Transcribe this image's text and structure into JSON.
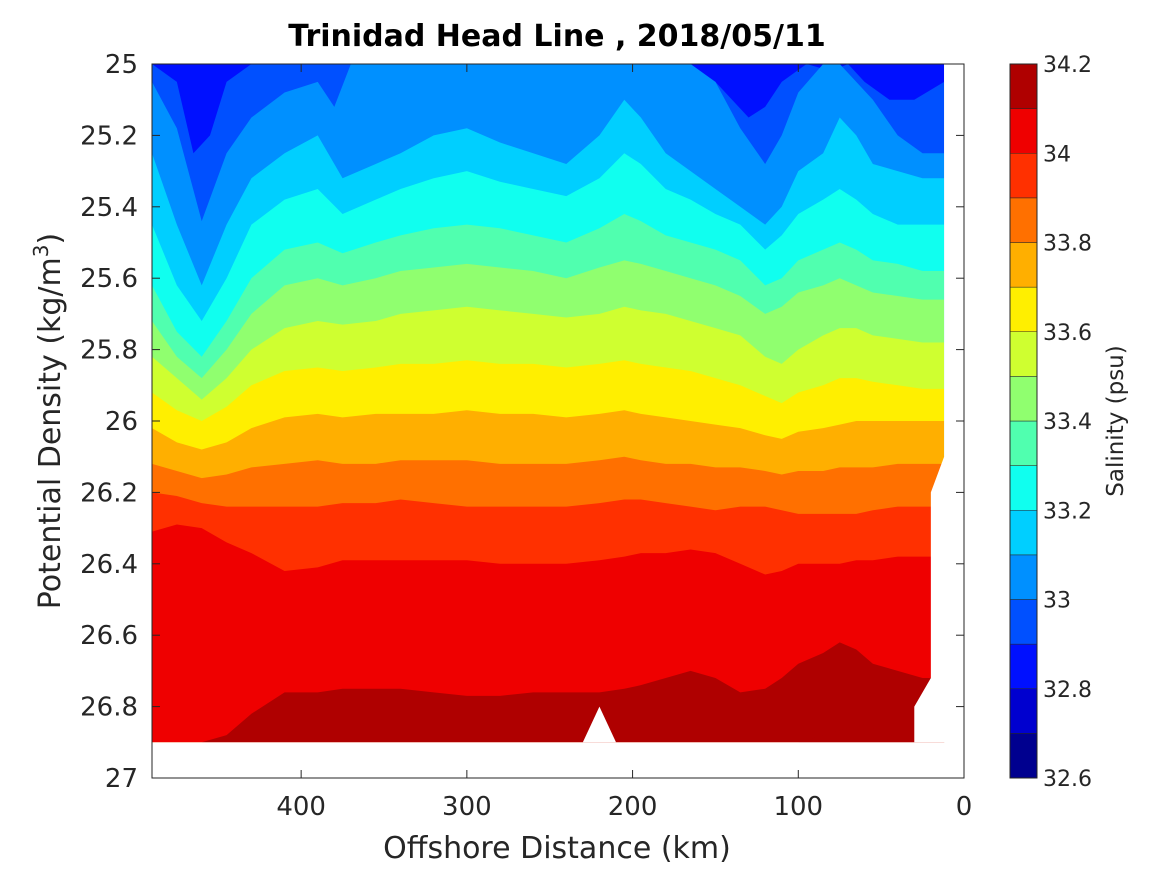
{
  "chart_data": {
    "type": "heatmap",
    "title": "Trinidad Head Line , 2018/05/11",
    "xlabel": "Offshore Distance (km)",
    "ylabel_main": "Potential Density (kg/m",
    "ylabel_sup": "3",
    "ylabel_close": ")",
    "colorbar_label": "Salinity (psu)",
    "x_reversed": true,
    "xlim": [
      490,
      0
    ],
    "ylim": [
      25,
      27
    ],
    "y_reversed": true,
    "x_ticks": [
      "400",
      "300",
      "200",
      "100",
      "0"
    ],
    "x_tick_values": [
      400,
      300,
      200,
      100,
      0
    ],
    "y_ticks": [
      "25",
      "25.2",
      "25.4",
      "25.6",
      "25.8",
      "26",
      "26.2",
      "26.4",
      "26.6",
      "26.8",
      "27"
    ],
    "y_tick_values": [
      25,
      25.2,
      25.4,
      25.6,
      25.8,
      26,
      26.2,
      26.4,
      26.6,
      26.8,
      27
    ],
    "colorbar_ticks": [
      "34.2",
      "34",
      "33.8",
      "33.6",
      "33.4",
      "33.2",
      "33",
      "32.8",
      "32.6"
    ],
    "colorbar_tick_values": [
      34.2,
      34.0,
      33.8,
      33.6,
      33.4,
      33.2,
      33.0,
      32.8,
      32.6
    ],
    "salinity_levels": [
      32.6,
      32.7,
      32.8,
      32.9,
      33.0,
      33.1,
      33.2,
      33.3,
      33.4,
      33.5,
      33.6,
      33.7,
      33.8,
      33.9,
      34.0,
      34.1,
      34.2
    ],
    "level_colors": [
      "#00008f",
      "#0000cf",
      "#0010ff",
      "#0050ff",
      "#0090ff",
      "#00cfff",
      "#10ffef",
      "#50ffaf",
      "#90ff6f",
      "#cfff30",
      "#ffef00",
      "#ffaf00",
      "#ff7000",
      "#ff3000",
      "#ef0000",
      "#af0000"
    ],
    "grid": false,
    "contour_boundaries_density": [
      {
        "above_level": 32.8,
        "x_km": [
          490,
          470,
          455,
          440,
          420,
          400,
          380,
          370,
          350,
          320,
          300,
          280,
          250,
          220,
          205,
          190,
          170,
          150,
          130,
          115,
          100,
          85,
          70,
          60,
          45,
          30,
          12
        ],
        "density": [
          25.0,
          25.0,
          25.0,
          25.0,
          25.0,
          25.0,
          25.0,
          25.0,
          25.0,
          25.0,
          25.0,
          25.0,
          25.0,
          25.0,
          25.0,
          25.0,
          25.0,
          25.0,
          25.0,
          25.0,
          25.0,
          25.0,
          25.0,
          25.0,
          25.0,
          25.0,
          25.0
        ]
      },
      {
        "above_level": 32.9,
        "x_km": [
          490,
          475,
          465,
          455,
          445,
          430,
          410,
          390,
          375,
          360,
          340,
          320,
          300,
          280,
          260,
          240,
          220,
          205,
          190,
          170,
          150,
          130,
          120,
          110,
          95,
          80,
          70,
          60,
          45,
          30,
          12
        ],
        "density": [
          25.0,
          25.05,
          25.25,
          25.2,
          25.05,
          25.0,
          25.0,
          25.0,
          25.0,
          25.0,
          25.0,
          25.0,
          25.0,
          25.0,
          25.0,
          25.0,
          25.0,
          25.0,
          25.0,
          25.0,
          25.05,
          25.15,
          25.12,
          25.05,
          25.0,
          25.02,
          25.0,
          25.05,
          25.1,
          25.1,
          25.05
        ]
      },
      {
        "above_level": 33.0,
        "x_km": [
          490,
          475,
          460,
          445,
          430,
          410,
          390,
          380,
          370,
          355,
          340,
          320,
          300,
          280,
          260,
          240,
          220,
          205,
          195,
          180,
          165,
          150,
          135,
          120,
          110,
          100,
          85,
          75,
          65,
          55,
          40,
          25,
          12
        ],
        "density": [
          25.05,
          25.18,
          25.44,
          25.25,
          25.15,
          25.08,
          25.05,
          25.12,
          25.0,
          25.0,
          25.0,
          25.0,
          25.0,
          25.0,
          25.0,
          25.0,
          25.0,
          25.0,
          25.0,
          25.0,
          25.0,
          25.05,
          25.18,
          25.28,
          25.2,
          25.08,
          25.0,
          25.0,
          25.05,
          25.1,
          25.2,
          25.25,
          25.25
        ]
      },
      {
        "above_level": 33.1,
        "x_km": [
          490,
          475,
          460,
          445,
          430,
          410,
          390,
          375,
          355,
          340,
          320,
          300,
          280,
          260,
          240,
          220,
          205,
          195,
          180,
          165,
          150,
          135,
          120,
          110,
          100,
          85,
          75,
          65,
          55,
          40,
          25,
          12
        ],
        "density": [
          25.25,
          25.45,
          25.62,
          25.45,
          25.32,
          25.25,
          25.2,
          25.32,
          25.28,
          25.25,
          25.2,
          25.18,
          25.22,
          25.25,
          25.28,
          25.2,
          25.1,
          25.15,
          25.25,
          25.3,
          25.35,
          25.4,
          25.45,
          25.4,
          25.3,
          25.25,
          25.15,
          25.2,
          25.28,
          25.3,
          25.32,
          25.32
        ]
      },
      {
        "above_level": 33.2,
        "x_km": [
          490,
          475,
          460,
          445,
          430,
          410,
          390,
          375,
          355,
          340,
          320,
          300,
          280,
          260,
          240,
          220,
          205,
          195,
          180,
          165,
          150,
          135,
          120,
          110,
          100,
          85,
          75,
          65,
          55,
          40,
          25,
          12
        ],
        "density": [
          25.45,
          25.62,
          25.72,
          25.6,
          25.45,
          25.38,
          25.35,
          25.42,
          25.38,
          25.35,
          25.32,
          25.3,
          25.33,
          25.35,
          25.37,
          25.32,
          25.25,
          25.28,
          25.35,
          25.38,
          25.42,
          25.45,
          25.52,
          25.48,
          25.42,
          25.38,
          25.35,
          25.38,
          25.42,
          25.45,
          25.45,
          25.45
        ]
      },
      {
        "above_level": 33.3,
        "x_km": [
          490,
          475,
          460,
          445,
          430,
          410,
          390,
          375,
          355,
          340,
          320,
          300,
          280,
          260,
          240,
          220,
          205,
          195,
          180,
          165,
          150,
          135,
          120,
          110,
          100,
          85,
          75,
          65,
          55,
          40,
          25,
          12
        ],
        "density": [
          25.62,
          25.75,
          25.82,
          25.72,
          25.6,
          25.52,
          25.5,
          25.53,
          25.5,
          25.48,
          25.46,
          25.45,
          25.46,
          25.48,
          25.5,
          25.46,
          25.42,
          25.44,
          25.48,
          25.5,
          25.52,
          25.55,
          25.62,
          25.6,
          25.55,
          25.52,
          25.5,
          25.52,
          25.55,
          25.56,
          25.58,
          25.58
        ]
      },
      {
        "above_level": 33.4,
        "x_km": [
          490,
          475,
          460,
          445,
          430,
          410,
          390,
          375,
          355,
          340,
          320,
          300,
          280,
          260,
          240,
          220,
          205,
          195,
          180,
          165,
          150,
          135,
          120,
          110,
          100,
          85,
          75,
          65,
          55,
          40,
          25,
          12
        ],
        "density": [
          25.72,
          25.82,
          25.88,
          25.8,
          25.7,
          25.62,
          25.6,
          25.62,
          25.6,
          25.58,
          25.57,
          25.56,
          25.57,
          25.58,
          25.6,
          25.57,
          25.55,
          25.56,
          25.58,
          25.6,
          25.62,
          25.65,
          25.7,
          25.68,
          25.64,
          25.62,
          25.6,
          25.62,
          25.64,
          25.65,
          25.66,
          25.66
        ]
      },
      {
        "above_level": 33.5,
        "x_km": [
          490,
          475,
          460,
          445,
          430,
          410,
          390,
          375,
          355,
          340,
          320,
          300,
          280,
          260,
          240,
          220,
          205,
          195,
          180,
          165,
          150,
          135,
          120,
          110,
          100,
          85,
          75,
          65,
          55,
          40,
          25,
          12
        ],
        "density": [
          25.82,
          25.88,
          25.94,
          25.88,
          25.8,
          25.74,
          25.72,
          25.73,
          25.72,
          25.7,
          25.69,
          25.68,
          25.69,
          25.7,
          25.71,
          25.7,
          25.68,
          25.69,
          25.7,
          25.72,
          25.74,
          25.76,
          25.82,
          25.84,
          25.8,
          25.76,
          25.74,
          25.74,
          25.76,
          25.77,
          25.78,
          25.78
        ]
      },
      {
        "above_level": 33.6,
        "x_km": [
          490,
          475,
          460,
          445,
          430,
          410,
          390,
          375,
          355,
          340,
          320,
          300,
          280,
          260,
          240,
          220,
          205,
          195,
          180,
          165,
          150,
          135,
          120,
          110,
          100,
          85,
          75,
          65,
          55,
          40,
          25,
          12
        ],
        "density": [
          25.92,
          25.97,
          26.0,
          25.96,
          25.9,
          25.86,
          25.85,
          25.86,
          25.85,
          25.84,
          25.84,
          25.83,
          25.84,
          25.84,
          25.85,
          25.84,
          25.83,
          25.84,
          25.85,
          25.86,
          25.88,
          25.9,
          25.93,
          25.95,
          25.92,
          25.9,
          25.88,
          25.88,
          25.89,
          25.9,
          25.91,
          25.91
        ]
      },
      {
        "above_level": 33.7,
        "x_km": [
          490,
          475,
          460,
          445,
          430,
          410,
          390,
          375,
          355,
          340,
          320,
          300,
          280,
          260,
          240,
          220,
          205,
          195,
          180,
          165,
          150,
          135,
          120,
          110,
          100,
          85,
          75,
          65,
          55,
          40,
          25,
          12
        ],
        "density": [
          26.02,
          26.06,
          26.08,
          26.06,
          26.02,
          25.99,
          25.98,
          25.99,
          25.98,
          25.98,
          25.98,
          25.97,
          25.98,
          25.98,
          25.99,
          25.98,
          25.97,
          25.98,
          25.99,
          26.0,
          26.01,
          26.02,
          26.04,
          26.05,
          26.03,
          26.02,
          26.01,
          26.0,
          26.0,
          26.0,
          26.0,
          26.0
        ]
      },
      {
        "above_level": 33.8,
        "x_km": [
          490,
          475,
          460,
          445,
          430,
          410,
          390,
          375,
          355,
          340,
          320,
          300,
          280,
          260,
          240,
          220,
          205,
          195,
          180,
          165,
          150,
          135,
          120,
          110,
          100,
          85,
          75,
          65,
          55,
          40,
          25,
          12
        ],
        "density": [
          26.12,
          26.14,
          26.16,
          26.15,
          26.13,
          26.12,
          26.11,
          26.12,
          26.12,
          26.11,
          26.11,
          26.11,
          26.12,
          26.12,
          26.12,
          26.11,
          26.1,
          26.11,
          26.12,
          26.12,
          26.13,
          26.13,
          26.14,
          26.15,
          26.14,
          26.14,
          26.13,
          26.13,
          26.13,
          26.12,
          26.12,
          26.12
        ]
      },
      {
        "above_level": 33.9,
        "x_km": [
          490,
          475,
          460,
          445,
          430,
          410,
          390,
          375,
          355,
          340,
          320,
          300,
          280,
          260,
          240,
          220,
          205,
          195,
          180,
          165,
          150,
          135,
          120,
          110,
          100,
          85,
          75,
          65,
          55,
          40,
          25,
          12
        ],
        "density": [
          26.2,
          26.21,
          26.23,
          26.24,
          26.24,
          26.24,
          26.24,
          26.23,
          26.23,
          26.22,
          26.23,
          26.24,
          26.24,
          26.24,
          26.24,
          26.23,
          26.22,
          26.22,
          26.23,
          26.24,
          26.25,
          26.24,
          26.24,
          26.25,
          26.26,
          26.26,
          26.26,
          26.26,
          26.25,
          26.24,
          26.24,
          26.24
        ]
      },
      {
        "above_level": 34.0,
        "x_km": [
          490,
          475,
          460,
          445,
          430,
          410,
          390,
          375,
          355,
          340,
          320,
          300,
          280,
          260,
          240,
          220,
          205,
          195,
          180,
          165,
          150,
          135,
          120,
          110,
          100,
          85,
          75,
          65,
          55,
          40,
          25,
          12
        ],
        "density": [
          26.31,
          26.29,
          26.3,
          26.34,
          26.37,
          26.42,
          26.41,
          26.39,
          26.39,
          26.39,
          26.39,
          26.39,
          26.4,
          26.4,
          26.4,
          26.39,
          26.38,
          26.37,
          26.37,
          26.36,
          26.37,
          26.4,
          26.43,
          26.42,
          26.4,
          26.4,
          26.4,
          26.39,
          26.39,
          26.38,
          26.38,
          26.38
        ]
      },
      {
        "above_level": 34.1,
        "x_km": [
          490,
          475,
          460,
          445,
          430,
          410,
          390,
          375,
          355,
          340,
          320,
          300,
          280,
          260,
          240,
          220,
          205,
          195,
          180,
          165,
          150,
          135,
          120,
          110,
          100,
          85,
          75,
          65,
          55,
          40,
          25,
          12
        ],
        "density": [
          26.9,
          26.9,
          26.9,
          26.88,
          26.82,
          26.76,
          26.76,
          26.75,
          26.75,
          26.75,
          26.76,
          26.77,
          26.77,
          26.76,
          26.76,
          26.76,
          26.75,
          26.74,
          26.72,
          26.7,
          26.72,
          26.76,
          26.75,
          26.72,
          26.68,
          26.65,
          26.62,
          26.64,
          26.68,
          26.7,
          26.72,
          26.72
        ]
      },
      {
        "above_level": 34.2,
        "x_km": [
          100,
          85,
          70,
          60,
          45,
          30
        ],
        "density": [
          26.9,
          26.88,
          26.86,
          26.85,
          26.88,
          26.9
        ]
      }
    ],
    "data_bottom_density": 26.9,
    "data_notch": {
      "x_km": [
        230,
        220,
        210
      ],
      "density": [
        26.9,
        26.8,
        26.9
      ]
    },
    "nearshore_edge": {
      "x_km": [
        12,
        12,
        20,
        20,
        20,
        20,
        30,
        30
      ],
      "density": [
        25.0,
        26.1,
        26.2,
        26.4,
        26.6,
        26.72,
        26.8,
        26.9
      ]
    }
  }
}
